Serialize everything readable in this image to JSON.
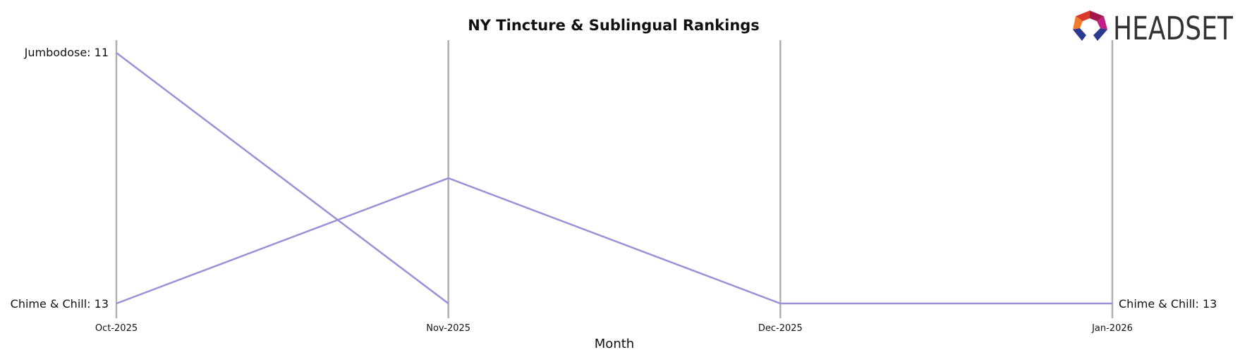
{
  "logo": {
    "text": "HEADSET"
  },
  "chart_data": {
    "type": "line",
    "title": "NY Tincture & Sublingual Rankings",
    "xlabel": "Month",
    "ylabel": "",
    "x": [
      "Oct-2025",
      "Nov-2025",
      "Dec-2025",
      "Jan-2026"
    ],
    "ylim": [
      11,
      13
    ],
    "y_inverted": true,
    "grid": false,
    "line_color": "#9a90d8",
    "axis_line_color": "#b0b0b0",
    "series": [
      {
        "name": "Jumbodose",
        "values": [
          11,
          13,
          null,
          null
        ]
      },
      {
        "name": "Chime & Chill",
        "values": [
          13,
          12,
          13,
          13
        ]
      }
    ],
    "start_labels": [
      "Jumbodose: 11",
      "Chime & Chill: 13"
    ],
    "end_labels": [
      "Chime & Chill: 13"
    ]
  }
}
